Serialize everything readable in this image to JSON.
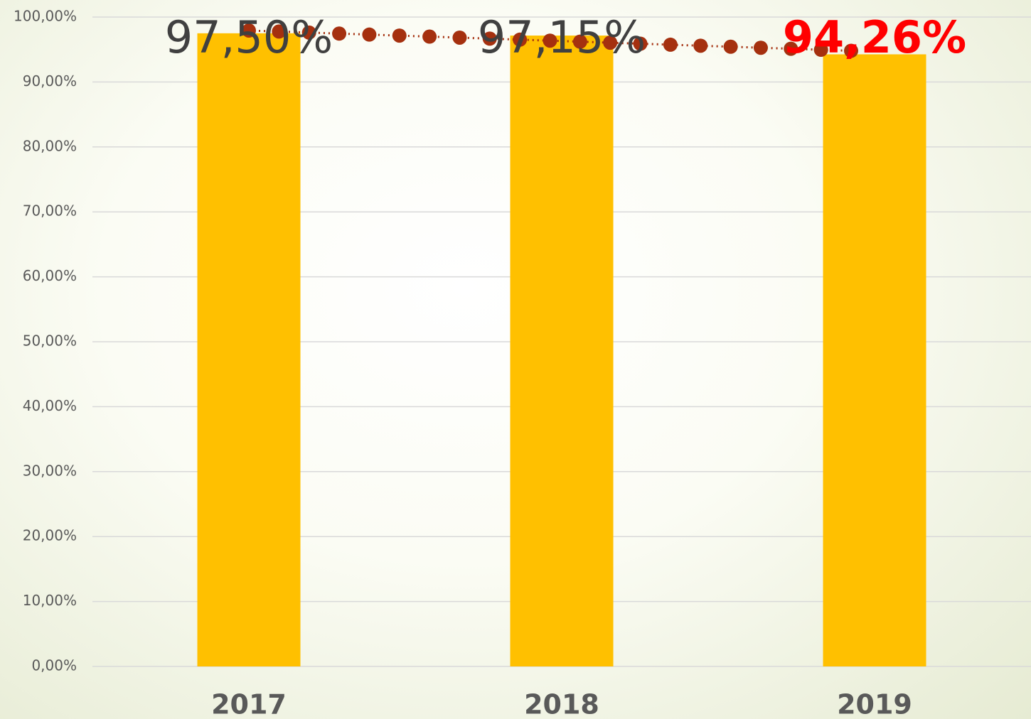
{
  "chart_data": {
    "type": "bar",
    "categories": [
      "2017",
      "2018",
      "2019"
    ],
    "values": [
      97.5,
      97.15,
      94.26
    ],
    "value_labels": [
      "97,50%",
      "97,15%",
      "94,26%"
    ],
    "value_label_colors": [
      "#404040",
      "#404040",
      "#ff0000"
    ],
    "color": "#ffc000",
    "trendline": {
      "type": "linear",
      "color": "#a5300f"
    },
    "ylim": [
      0,
      100
    ],
    "yticks": [
      {
        "value": 0,
        "label": "0,00%"
      },
      {
        "value": 10,
        "label": "10,00%"
      },
      {
        "value": 20,
        "label": "20,00%"
      },
      {
        "value": 30,
        "label": "30,00%"
      },
      {
        "value": 40,
        "label": "40,00%"
      },
      {
        "value": 50,
        "label": "50,00%"
      },
      {
        "value": 60,
        "label": "60,00%"
      },
      {
        "value": 70,
        "label": "70,00%"
      },
      {
        "value": 80,
        "label": "80,00%"
      },
      {
        "value": 90,
        "label": "90,00%"
      },
      {
        "value": 100,
        "label": "100,00%"
      }
    ],
    "grid": true
  }
}
